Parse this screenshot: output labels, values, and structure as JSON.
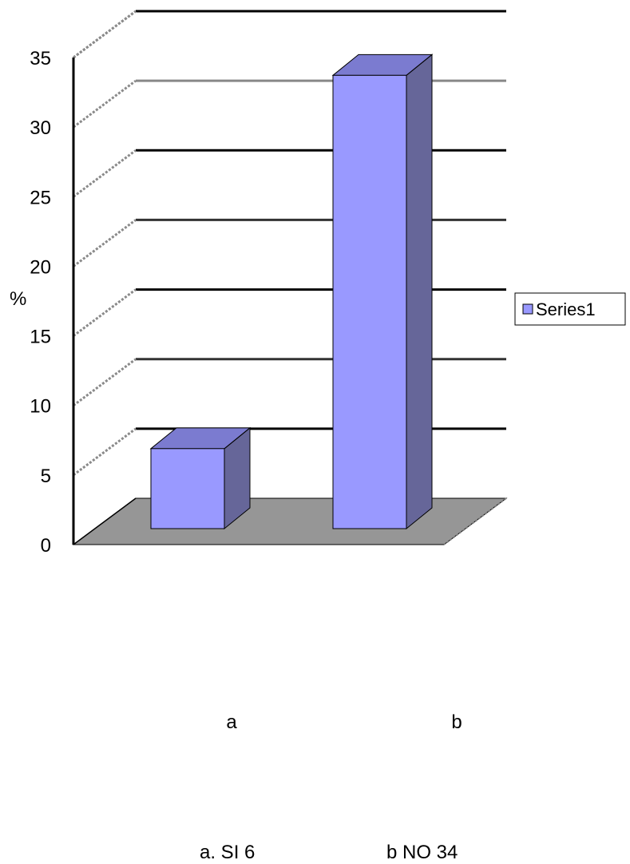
{
  "chart_data": {
    "type": "bar",
    "categories": [
      "a",
      "b"
    ],
    "series": [
      {
        "name": "Series1",
        "values": [
          6,
          34
        ]
      }
    ],
    "ylabel": "%",
    "ylim": [
      0,
      35
    ],
    "yticks": [
      0,
      5,
      10,
      15,
      20,
      25,
      30,
      35
    ],
    "grid": true,
    "legend": "right",
    "colors": {
      "bar_front": "#9999ff",
      "bar_side": "#666699",
      "bar_top": "#7b7bd0",
      "floor": "#969696",
      "grid": "#000000"
    }
  },
  "footnotes": [
    "a. SI 6",
    "b NO 34"
  ]
}
